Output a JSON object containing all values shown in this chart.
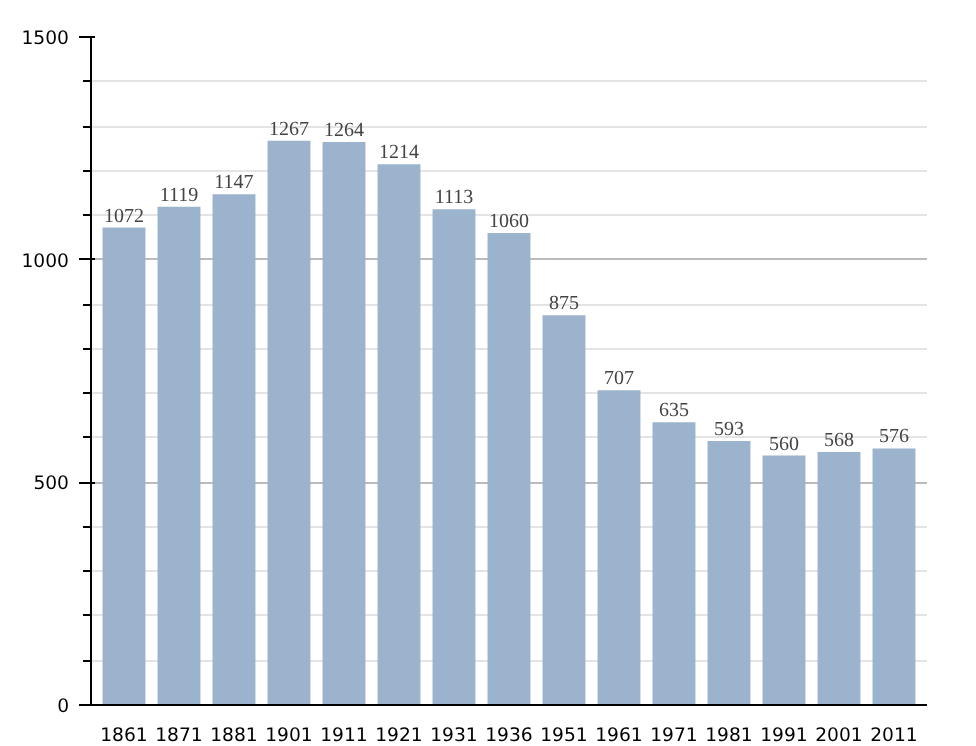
{
  "chart_data": {
    "type": "bar",
    "categories": [
      "1861",
      "1871",
      "1881",
      "1901",
      "1911",
      "1921",
      "1931",
      "1936",
      "1951",
      "1961",
      "1971",
      "1981",
      "1991",
      "2001",
      "2011"
    ],
    "values": [
      1072,
      1119,
      1147,
      1267,
      1264,
      1214,
      1113,
      1060,
      875,
      707,
      635,
      593,
      560,
      568,
      576
    ],
    "color": "#9bb3cc",
    "ylim": [
      0,
      1500
    ],
    "yticks": [
      0,
      500,
      1000,
      1500
    ],
    "grid": "y",
    "data_labels": true
  }
}
